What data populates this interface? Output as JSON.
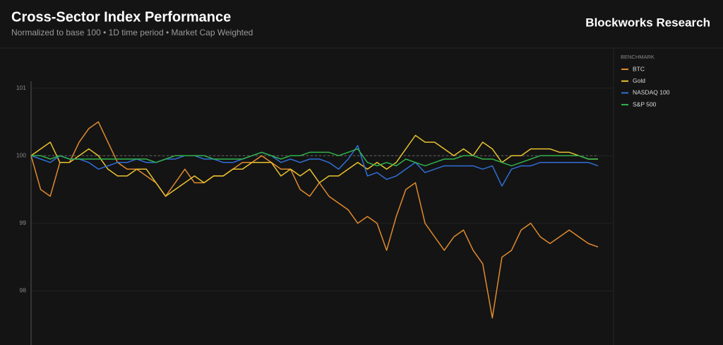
{
  "chart_data": {
    "type": "line",
    "title": "Cross-Sector Index Performance",
    "subtitle": "Normalized to base 100 • 1D time period • Market Cap Weighted",
    "brand": "Blockworks Research",
    "legend_title": "BENCHMARK",
    "ylim": [
      97.2,
      101.1
    ],
    "yticks": [
      98,
      99,
      100,
      101
    ],
    "reference_line": 100,
    "grid": true,
    "series": [
      {
        "name": "BTC",
        "color": "#e08a2e",
        "values": [
          100.0,
          99.5,
          99.4,
          99.9,
          99.9,
          100.2,
          100.4,
          100.5,
          100.2,
          99.9,
          99.8,
          99.8,
          99.7,
          99.6,
          99.4,
          99.6,
          99.8,
          99.6,
          99.6,
          99.7,
          99.7,
          99.8,
          99.9,
          99.9,
          100.0,
          99.9,
          99.8,
          99.8,
          99.5,
          99.4,
          99.6,
          99.4,
          99.3,
          99.2,
          99.0,
          99.1,
          99.0,
          98.6,
          99.1,
          99.5,
          99.6,
          99.0,
          98.8,
          98.6,
          98.8,
          98.9,
          98.6,
          98.4,
          97.6,
          98.5,
          98.6,
          98.9,
          99.0,
          98.8,
          98.7,
          98.8,
          98.9,
          98.8,
          98.7,
          98.65
        ]
      },
      {
        "name": "Gold",
        "color": "#e8c12f",
        "values": [
          100.0,
          100.1,
          100.2,
          99.9,
          99.9,
          100.0,
          100.1,
          100.0,
          99.8,
          99.7,
          99.7,
          99.8,
          99.8,
          99.6,
          99.4,
          99.5,
          99.6,
          99.7,
          99.6,
          99.7,
          99.7,
          99.8,
          99.8,
          99.9,
          99.9,
          99.9,
          99.7,
          99.8,
          99.7,
          99.8,
          99.6,
          99.7,
          99.7,
          99.8,
          99.9,
          99.8,
          99.9,
          99.8,
          99.9,
          100.1,
          100.3,
          100.2,
          100.2,
          100.1,
          100.0,
          100.1,
          100.0,
          100.2,
          100.1,
          99.9,
          100.0,
          100.0,
          100.1,
          100.1,
          100.1,
          100.05,
          100.05,
          100.0,
          99.95,
          99.95
        ]
      },
      {
        "name": "NASDAQ 100",
        "color": "#2f6fd6",
        "values": [
          100,
          99.95,
          99.9,
          100,
          99.95,
          99.95,
          99.9,
          99.8,
          99.85,
          99.9,
          99.9,
          99.95,
          99.9,
          99.9,
          99.95,
          99.95,
          100,
          100,
          99.95,
          99.95,
          99.9,
          99.9,
          99.95,
          100,
          100.05,
          100,
          99.9,
          99.95,
          99.9,
          99.95,
          99.95,
          99.9,
          99.8,
          99.95,
          100.15,
          99.7,
          99.75,
          99.65,
          99.7,
          99.8,
          99.9,
          99.75,
          99.8,
          99.85,
          99.85,
          99.85,
          99.85,
          99.8,
          99.85,
          99.55,
          99.8,
          99.85,
          99.85,
          99.9,
          99.9,
          99.9,
          99.9,
          99.9,
          99.9,
          99.85
        ]
      },
      {
        "name": "S&P 500",
        "color": "#2fb34a",
        "values": [
          100,
          100,
          99.95,
          100,
          99.95,
          99.95,
          99.95,
          99.95,
          99.95,
          99.95,
          99.95,
          99.95,
          99.95,
          99.9,
          99.95,
          100,
          100,
          100,
          100,
          99.95,
          99.95,
          99.95,
          99.95,
          100,
          100.05,
          100,
          99.95,
          100,
          100,
          100.05,
          100.05,
          100.05,
          100,
          100.05,
          100.1,
          99.9,
          99.85,
          99.9,
          99.85,
          99.95,
          99.9,
          99.85,
          99.9,
          99.95,
          99.95,
          100,
          100,
          99.95,
          99.95,
          99.9,
          99.85,
          99.9,
          99.95,
          100,
          100,
          100,
          100,
          100,
          99.95,
          99.95
        ]
      }
    ]
  }
}
